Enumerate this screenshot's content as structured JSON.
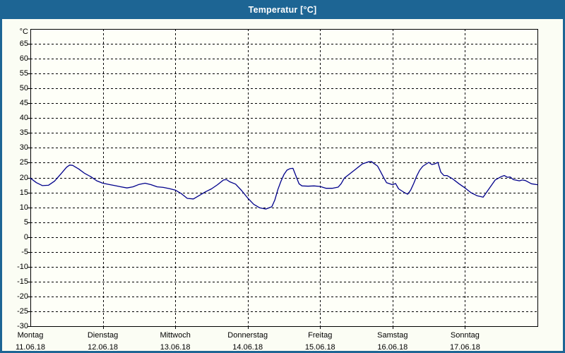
{
  "window": {
    "title": "Temperatur [°C]"
  },
  "colors": {
    "titlebar_bg": "#1d6594",
    "window_border": "#1d6594",
    "title_text": "#ffffff",
    "content_bg": "#fbfdf4",
    "plot_bg": "#fefff8",
    "grid": "#000000",
    "line": "#00008b"
  },
  "chart_data": {
    "type": "line",
    "title": "Temperatur [°C]",
    "ylabel_unit": "°C",
    "ylim": [
      -30,
      70
    ],
    "xlim_hours": [
      0,
      168
    ],
    "grid": "dashed",
    "legend": "none",
    "y_ticks": [
      {
        "label": "65",
        "value": 65
      },
      {
        "label": "60",
        "value": 60
      },
      {
        "label": "55",
        "value": 55
      },
      {
        "label": "50",
        "value": 50
      },
      {
        "label": "45",
        "value": 45
      },
      {
        "label": "40",
        "value": 40
      },
      {
        "label": "35",
        "value": 35
      },
      {
        "label": "30",
        "value": 30
      },
      {
        "label": "25",
        "value": 25
      },
      {
        "label": "20",
        "value": 20
      },
      {
        "label": "15",
        "value": 15
      },
      {
        "label": "10",
        "value": 10
      },
      {
        "label": "5",
        "value": 5
      },
      {
        "label": "0",
        "value": 0
      },
      {
        "label": "-5",
        "value": -5
      },
      {
        "label": "-10",
        "value": -10
      },
      {
        "label": "-15",
        "value": -15
      },
      {
        "label": "-20",
        "value": -20
      },
      {
        "label": "-25",
        "value": -25
      },
      {
        "label": "-30",
        "value": -30
      }
    ],
    "x_days": [
      {
        "name": "Montag",
        "date": "11.06.18",
        "start_hour": 0
      },
      {
        "name": "Dienstag",
        "date": "12.06.18",
        "start_hour": 24
      },
      {
        "name": "Mittwoch",
        "date": "13.06.18",
        "start_hour": 48
      },
      {
        "name": "Donnerstag",
        "date": "14.06.18",
        "start_hour": 72
      },
      {
        "name": "Freitag",
        "date": "15.06.18",
        "start_hour": 96
      },
      {
        "name": "Samstag",
        "date": "16.06.18",
        "start_hour": 120
      },
      {
        "name": "Sonntag",
        "date": "17.06.18",
        "start_hour": 144
      }
    ],
    "series": [
      {
        "name": "Temperatur",
        "color": "#00008b",
        "points": [
          [
            0,
            19.8
          ],
          [
            2,
            18.3
          ],
          [
            4,
            17.3
          ],
          [
            6,
            17.4
          ],
          [
            8,
            18.8
          ],
          [
            10,
            21.1
          ],
          [
            12,
            23.5
          ],
          [
            13,
            24.2
          ],
          [
            14,
            24.1
          ],
          [
            16,
            22.9
          ],
          [
            18,
            21.4
          ],
          [
            20,
            20.3
          ],
          [
            22,
            18.9
          ],
          [
            24,
            18.1
          ],
          [
            26,
            17.7
          ],
          [
            28,
            17.3
          ],
          [
            30,
            16.9
          ],
          [
            32,
            16.5
          ],
          [
            34,
            16.9
          ],
          [
            36,
            17.7
          ],
          [
            38,
            18.1
          ],
          [
            40,
            17.6
          ],
          [
            42,
            16.9
          ],
          [
            44,
            16.7
          ],
          [
            46,
            16.3
          ],
          [
            48,
            15.8
          ],
          [
            50,
            14.6
          ],
          [
            52,
            13.0
          ],
          [
            54,
            12.8
          ],
          [
            56,
            14.0
          ],
          [
            58,
            15.2
          ],
          [
            60,
            16.2
          ],
          [
            62,
            17.6
          ],
          [
            64,
            19.2
          ],
          [
            65,
            19.3
          ],
          [
            66,
            18.6
          ],
          [
            68,
            17.8
          ],
          [
            70,
            15.6
          ],
          [
            72,
            13.1
          ],
          [
            74,
            11.0
          ],
          [
            76,
            9.8
          ],
          [
            78,
            9.4
          ],
          [
            80,
            10.2
          ],
          [
            81,
            12.5
          ],
          [
            82,
            16.0
          ],
          [
            83,
            18.7
          ],
          [
            84,
            21.0
          ],
          [
            85,
            22.5
          ],
          [
            86,
            23.0
          ],
          [
            87,
            23.1
          ],
          [
            88,
            20.5
          ],
          [
            89,
            17.9
          ],
          [
            90,
            17.2
          ],
          [
            92,
            17.1
          ],
          [
            94,
            17.2
          ],
          [
            96,
            17.0
          ],
          [
            98,
            16.4
          ],
          [
            100,
            16.4
          ],
          [
            102,
            16.8
          ],
          [
            103,
            18.0
          ],
          [
            104,
            19.8
          ],
          [
            106,
            21.4
          ],
          [
            108,
            23.0
          ],
          [
            110,
            24.6
          ],
          [
            112,
            25.3
          ],
          [
            113,
            25.4
          ],
          [
            114,
            24.6
          ],
          [
            115,
            23.9
          ],
          [
            116,
            22.0
          ],
          [
            117,
            20.1
          ],
          [
            118,
            18.3
          ],
          [
            120,
            17.6
          ],
          [
            121,
            18.0
          ],
          [
            122,
            16.2
          ],
          [
            124,
            14.9
          ],
          [
            125,
            14.4
          ],
          [
            126,
            15.8
          ],
          [
            127,
            18.0
          ],
          [
            128,
            20.5
          ],
          [
            129,
            22.5
          ],
          [
            130,
            23.8
          ],
          [
            132,
            25.1
          ],
          [
            133,
            24.4
          ],
          [
            134,
            24.6
          ],
          [
            135,
            25.1
          ],
          [
            136,
            21.8
          ],
          [
            137,
            20.7
          ],
          [
            138,
            20.7
          ],
          [
            140,
            19.5
          ],
          [
            142,
            17.9
          ],
          [
            144,
            16.5
          ],
          [
            146,
            14.9
          ],
          [
            148,
            13.9
          ],
          [
            150,
            13.4
          ],
          [
            152,
            16.3
          ],
          [
            154,
            19.2
          ],
          [
            156,
            20.3
          ],
          [
            157,
            20.7
          ],
          [
            158,
            20.1
          ],
          [
            159,
            20.2
          ],
          [
            160,
            19.3
          ],
          [
            162,
            18.9
          ],
          [
            163,
            19.2
          ],
          [
            164,
            19.0
          ],
          [
            166,
            17.9
          ],
          [
            168,
            17.6
          ]
        ]
      }
    ]
  }
}
